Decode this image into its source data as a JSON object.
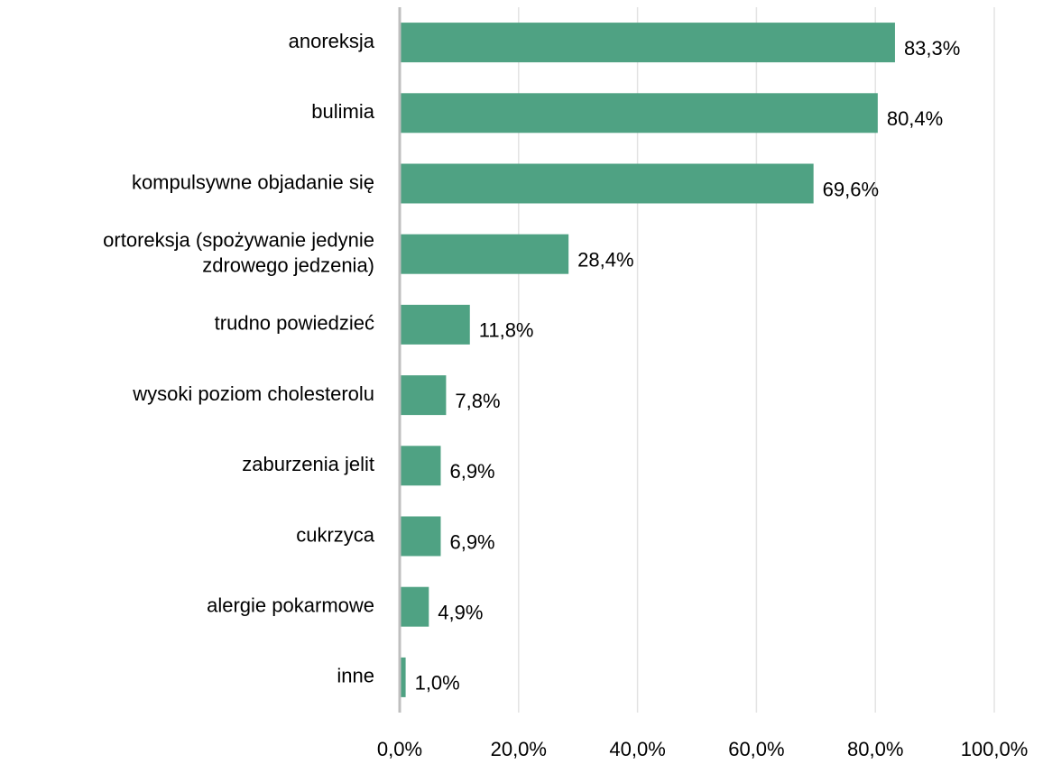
{
  "chart_data": {
    "type": "bar",
    "orientation": "horizontal",
    "categories": [
      "anoreksja",
      "bulimia",
      "kompulsywne objadanie się",
      "ortoreksja (spożywanie jedynie\nzdrowego jedzenia)",
      "trudno powiedzieć",
      "wysoki poziom cholesterolu",
      "zaburzenia jelit",
      "cukrzyca",
      "alergie pokarmowe",
      "inne"
    ],
    "values": [
      83.3,
      80.4,
      69.6,
      28.4,
      11.8,
      7.8,
      6.9,
      6.9,
      4.9,
      1.0
    ],
    "value_labels": [
      "83,3%",
      "80,4%",
      "69,6%",
      "28,4%",
      "11,8%",
      "7,8%",
      "6,9%",
      "6,9%",
      "4,9%",
      "1,0%"
    ],
    "color": "#4fa283",
    "xlim": [
      0,
      100
    ],
    "xticks": [
      {
        "value": 0,
        "label": "0,0%"
      },
      {
        "value": 20,
        "label": "20,0%"
      },
      {
        "value": 40,
        "label": "40,0%"
      },
      {
        "value": 60,
        "label": "60,0%"
      },
      {
        "value": 80,
        "label": "80,0%"
      },
      {
        "value": 100,
        "label": "100,0%"
      }
    ],
    "grid": true
  }
}
